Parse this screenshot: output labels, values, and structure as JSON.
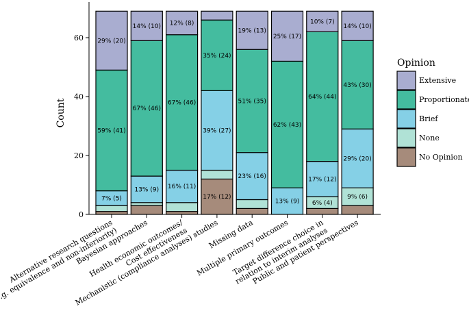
{
  "chart_data": {
    "type": "bar",
    "stacked": true,
    "ylabel": "Count",
    "xlabel": "",
    "ylim": [
      0,
      69
    ],
    "yticks": [
      "0",
      "20",
      "40",
      "60"
    ],
    "legend_title": "Opinion",
    "legend_position": "right",
    "categories": [
      [
        "Alternative research questions",
        "(e.g. equivalence and non-inferiority)"
      ],
      [
        "Bayesian approaches"
      ],
      [
        "Health economic outcomes/",
        "Cost effectiveness"
      ],
      [
        "Mechanistic (compliance analyses) studies"
      ],
      [
        "Missing data"
      ],
      [
        "Multiple primary outcomes"
      ],
      [
        "Target difference choice in",
        "relation to interim analyses"
      ],
      [
        "Public and patient perspectives"
      ]
    ],
    "series": [
      {
        "name": "No Opinion",
        "color": "#a68b7b",
        "values": [
          1,
          3,
          1,
          12,
          2,
          0,
          2,
          3
        ]
      },
      {
        "name": "None",
        "color": "#b0e2d6",
        "values": [
          2,
          1,
          3,
          3,
          3,
          0,
          4,
          6
        ]
      },
      {
        "name": "Brief",
        "color": "#85d0e6",
        "values": [
          5,
          9,
          11,
          27,
          16,
          9,
          12,
          20
        ]
      },
      {
        "name": "Proportionate",
        "color": "#44bc9f",
        "values": [
          41,
          46,
          46,
          24,
          35,
          43,
          44,
          30
        ]
      },
      {
        "name": "Extensive",
        "color": "#a9add0",
        "values": [
          20,
          10,
          8,
          3,
          13,
          17,
          7,
          10
        ]
      }
    ],
    "legend_order": [
      "Extensive",
      "Proportionate",
      "Brief",
      "None",
      "No Opinion"
    ],
    "bar_labels": [
      [
        {
          "series": "Brief",
          "text": "7% (5)"
        },
        {
          "series": "Proportionate",
          "text": "59% (41)"
        },
        {
          "series": "Extensive",
          "text": "29% (20)"
        }
      ],
      [
        {
          "series": "Brief",
          "text": "13% (9)"
        },
        {
          "series": "Proportionate",
          "text": "67% (46)"
        },
        {
          "series": "Extensive",
          "text": "14% (10)"
        }
      ],
      [
        {
          "series": "Brief",
          "text": "16% (11)"
        },
        {
          "series": "Proportionate",
          "text": "67% (46)"
        },
        {
          "series": "Extensive",
          "text": "12% (8)"
        }
      ],
      [
        {
          "series": "No Opinion",
          "text": "17% (12)"
        },
        {
          "series": "Brief",
          "text": "39% (27)"
        },
        {
          "series": "Proportionate",
          "text": "35% (24)"
        }
      ],
      [
        {
          "series": "Brief",
          "text": "23% (16)"
        },
        {
          "series": "Proportionate",
          "text": "51% (35)"
        },
        {
          "series": "Extensive",
          "text": "19% (13)"
        }
      ],
      [
        {
          "series": "Brief",
          "text": "13% (9)"
        },
        {
          "series": "Proportionate",
          "text": "62% (43)"
        },
        {
          "series": "Extensive",
          "text": "25% (17)"
        }
      ],
      [
        {
          "series": "None",
          "text": "6% (4)"
        },
        {
          "series": "Brief",
          "text": "17% (12)"
        },
        {
          "series": "Proportionate",
          "text": "64% (44)"
        },
        {
          "series": "Extensive",
          "text": "10% (7)"
        }
      ],
      [
        {
          "series": "None",
          "text": "9% (6)"
        },
        {
          "series": "Brief",
          "text": "29% (20)"
        },
        {
          "series": "Proportionate",
          "text": "43% (30)"
        },
        {
          "series": "Extensive",
          "text": "14% (10)"
        }
      ]
    ]
  }
}
